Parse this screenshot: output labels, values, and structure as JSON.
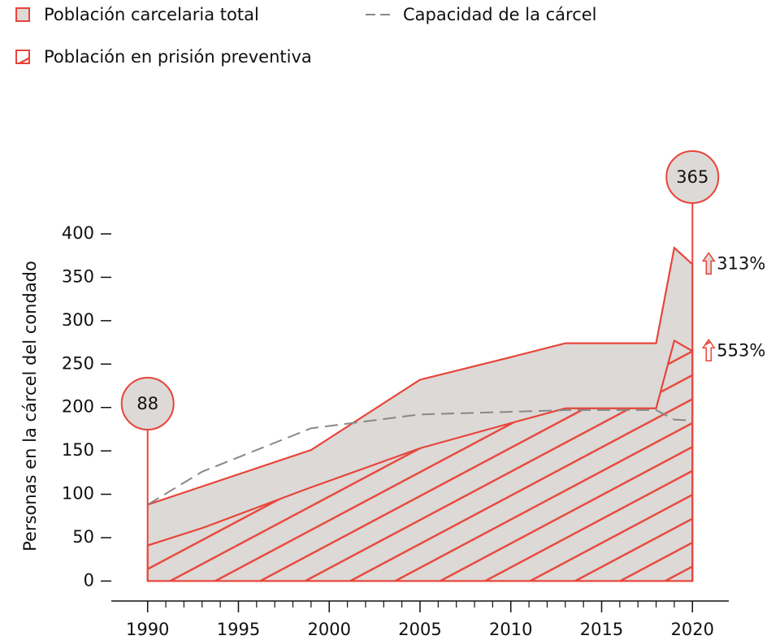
{
  "chart_data": {
    "type": "area",
    "y_label": "Personas en la cárcel del condado",
    "x": [
      1990,
      1993,
      1999,
      2005,
      2010,
      2013,
      2018,
      2019,
      2020
    ],
    "series": [
      {
        "name": "Población carcelaria total",
        "color": "#e8443a",
        "fill": "#dcd9d6",
        "values": [
          88,
          109,
          151,
          232,
          258,
          274,
          274,
          384,
          365
        ]
      },
      {
        "name": "Población en prisión preventiva",
        "color": "#e8443a",
        "hatch": true,
        "values": [
          41,
          61,
          108,
          153,
          182,
          199,
          199,
          277,
          265
        ]
      },
      {
        "name": "Capacidad de la cárcel",
        "color": "#888888",
        "dashed": true,
        "values": [
          88,
          126,
          176,
          192,
          195,
          197,
          197,
          186,
          185
        ]
      }
    ],
    "annotations": [
      "313%",
      "553%"
    ],
    "xlim": [
      1988,
      2022
    ],
    "ylim": [
      -23,
      400
    ],
    "xticks": [
      1990,
      1995,
      2000,
      2005,
      2010,
      2015,
      2020
    ],
    "xminor_ticks": [
      1991,
      1992,
      1993,
      1994,
      1996,
      1997,
      1998,
      1999,
      2001,
      2002,
      2003,
      2004,
      2006,
      2007,
      2008,
      2009,
      2011,
      2012,
      2013,
      2014,
      2016,
      2017,
      2018,
      2019
    ],
    "yticks": [
      0,
      50,
      100,
      150,
      200,
      250,
      300,
      350,
      400
    ]
  }
}
